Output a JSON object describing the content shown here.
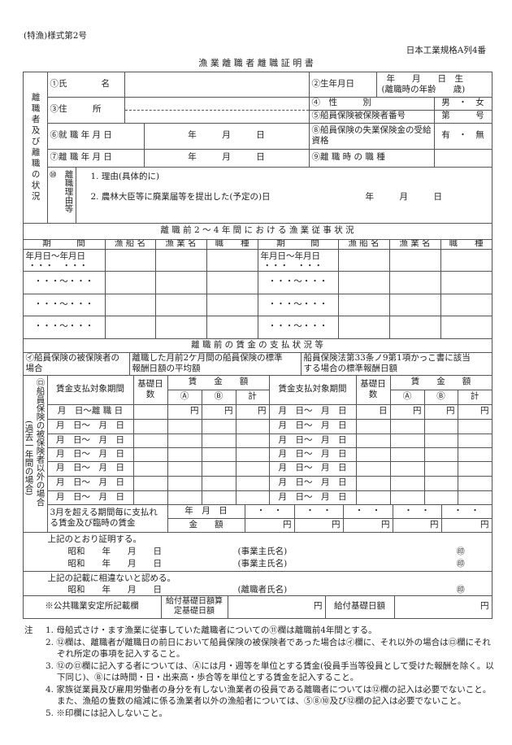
{
  "header": {
    "form_no": "(特漁)様式第2号",
    "paper_std": "日本工業規格A列4番",
    "title": "漁 業 離 職 者 離 職 証 明 書"
  },
  "sec1": {
    "side_label": "離職者及び離職の状況",
    "name_label": "①氏　　　　名",
    "birth_label": "②生年月日",
    "birth_value": "年　　月　　日　生",
    "age_value": "(離職時の年齢　　歳)",
    "address_label": "③住　　　所",
    "sex_label": "④　性　　　別",
    "sex_value": "男　・　女",
    "insured_no_label": "⑤船員保険被保険者番号",
    "insured_no_value": "第　　　号",
    "hire_label": "⑥就 職 年 月 日",
    "hire_value": "年　　　月　　　日",
    "eligibility_label": "⑧船員保険の失業保険金の受給資格",
    "eligibility_value": "有　・　無",
    "sep_label": "⑦離 職 年 月 日",
    "sep_value": "年　　　月　　　日",
    "job_label": "⑨離 職 時 の 職 種",
    "reason_num": "⑩",
    "reason_label": "離職理由等",
    "reason_1": "1. 理由(具体的に)",
    "reason_2": "2. 農林大臣等に廃業届等を提出した(予定の)日",
    "reason_2_date": "年　　　月　　　日"
  },
  "sec11": {
    "num": "⑪",
    "title": "離 職 前 2 〜 4 年 間 に お け る 漁 業 従 事 状 況",
    "columns": [
      "期　　　間",
      "漁 船 名",
      "漁 業 名",
      "職　　種"
    ],
    "first_period": "年月日〜年月日",
    "first_dots": "・・・　・・・",
    "period": "・・・〜・・・"
  },
  "sec12": {
    "num": "⑫",
    "title": "離 職 前 の 賃 金 の 支 払 状 況 等",
    "i_label": "㋑船員保険の被保険者の場合",
    "i_avg": "離職した月前2ケ月間の船員保険の標準報酬日額の平均額",
    "i_art": "船員保険法第33条ノ9第1項かっこ書に該当する場合の標準報酬日額",
    "yen": "円"
  },
  "ro": {
    "side_label": "㋺船員保険の被保険者以外の場合",
    "sub_label": "(過去一年間の場合)",
    "period_header": "賃金支払対象期間",
    "days_header": "基礎日数",
    "wage_header": "賃　　金　　額",
    "col_a": "Ⓐ",
    "col_b": "Ⓑ",
    "col_total": "計",
    "first_period": "月　日〜離 職 日",
    "period": "月　日〜　月　日",
    "yen": "円",
    "day": "日",
    "bonus_label": "3月を超える期間毎に支払れる賃金及び臨時の賃金",
    "date_label": "年　月　日",
    "amount_label": "金　　額",
    "dots": "・　・"
  },
  "cert": {
    "line1": "上記のとおり証明する。",
    "date": "昭和　　年　　月　　日",
    "employer": "(事業主氏名)",
    "seal": "㊞",
    "line2": "上記の記載に相違ないと認める。",
    "separated": "(離職者氏名)",
    "office": "※公共職業安定所記載欄",
    "calc_label": "給付基礎日額算定基礎日額",
    "yen": "円",
    "benefit_label": "給付基礎日額"
  },
  "notes": {
    "head": "注",
    "items": [
      "1. 母船式さけ・ます漁業に従事していた離職者についての⑪欄は離職前4年間とする。",
      "2. ⑫欄は、離職者が離職日の前日において船員保険の被保険者であった場合は㋑欄に、それ以外の場合は㋺欄にそれぞれ所定の事項を記入すること。",
      "3. ⑫の㋺欄に記入する者については、Ⓐには月・週等を単位とする賃金(役員手当等役員として受けた報酬を除く。以下同じ)、Ⓑには時間・日・出来高・歩合等を単位とする賃金を記入すること。",
      "4. 家族従業員及び雇用労働者の身分を有しない漁業者の役員である離職者については⑫欄の記入は必要でないこと。また、漁船の隻数の縮減に係る漁業者以外の漁船者については、⑤⑧⑩及び⑫欄の記入は必要でないこと。",
      "5. ※印欄には記入しないこと。"
    ]
  }
}
